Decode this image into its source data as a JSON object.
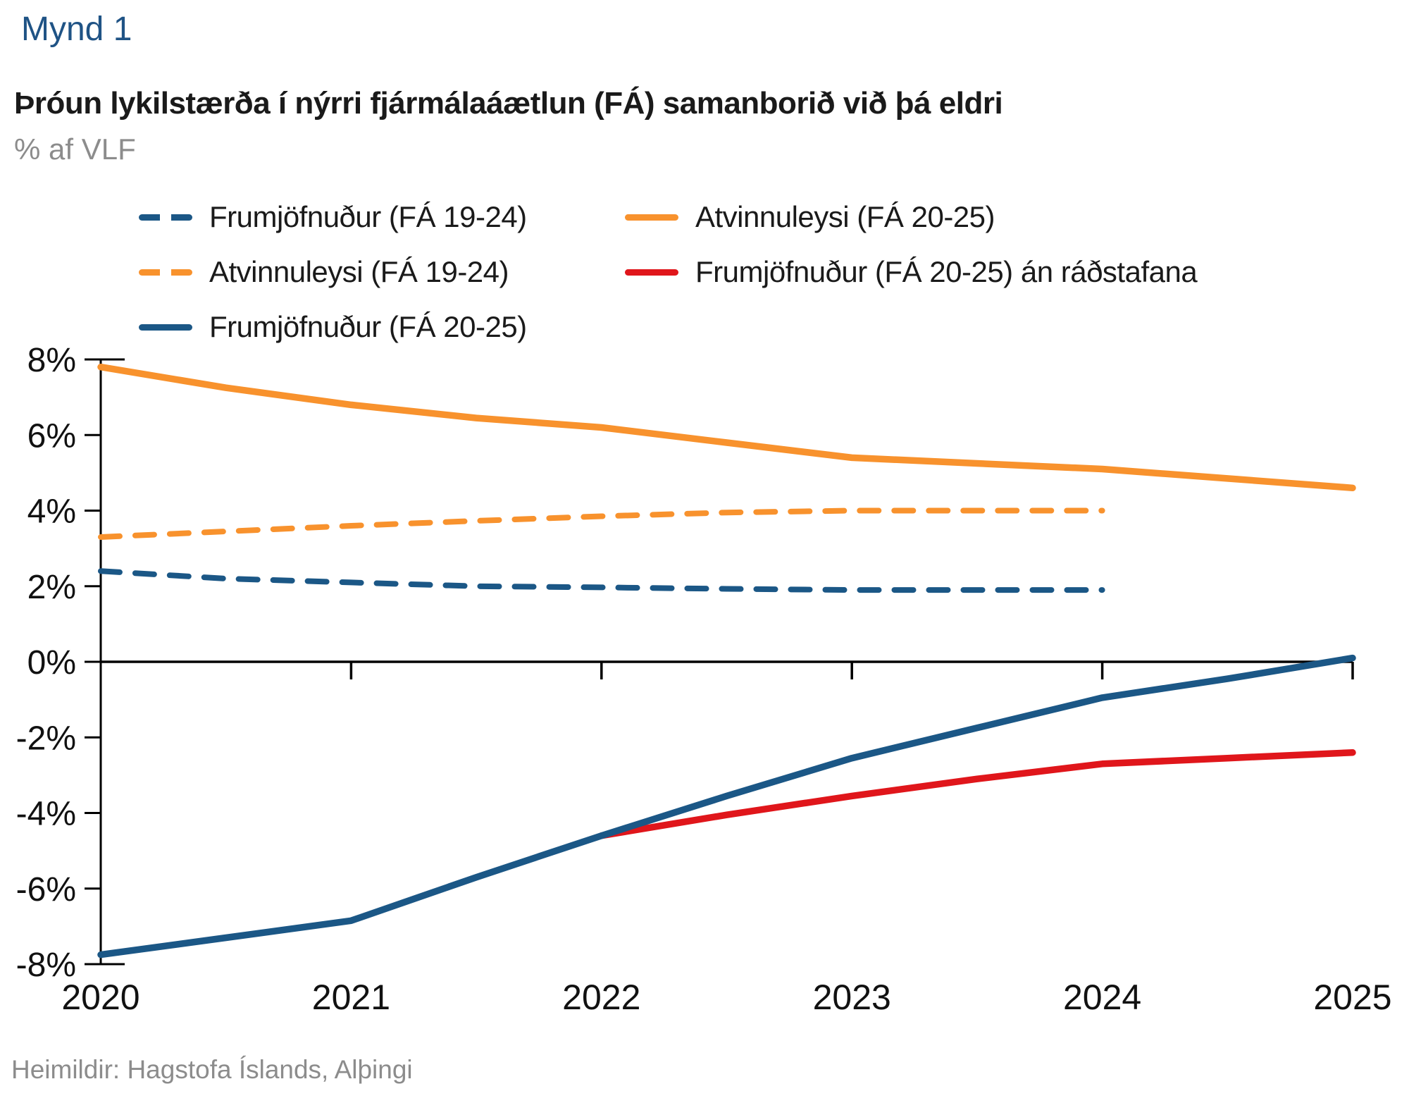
{
  "header": {
    "figure_label": "Mynd 1",
    "title": "Þróun lykilstærða í nýrri fjármálaáætlun (FÁ) samanborið við þá eldri",
    "unit_label": "% af VLF"
  },
  "colors": {
    "title_blue": "#1F5385",
    "near_black": "#1A1A1A",
    "gray_text": "#8C8C8C",
    "axis_black": "#000000",
    "blue": "#1B5786",
    "orange": "#F8922D",
    "red": "#E0161B"
  },
  "legend": {
    "items": [
      {
        "label": "Frumjöfnuður (FÁ 19-24)",
        "color": "#1B5786",
        "dash": true
      },
      {
        "label": "Atvinnuleysi (FÁ 20-25)",
        "color": "#F8922D",
        "dash": false
      },
      {
        "label": "Atvinnuleysi (FÁ 19-24)",
        "color": "#F8922D",
        "dash": true
      },
      {
        "label": "Frumjöfnuður (FÁ 20-25) án ráðstafana",
        "color": "#E0161B",
        "dash": false
      },
      {
        "label": "Frumjöfnuður (FÁ 20-25)",
        "color": "#1B5786",
        "dash": false
      }
    ]
  },
  "chart_data": {
    "type": "line",
    "title": "Þróun lykilstærða í nýrri fjármálaáætlun (FÁ) samanborið við þá eldri",
    "subtitle": "% af VLF",
    "xlim": [
      2020,
      2025
    ],
    "ylim": [
      -8,
      8
    ],
    "x_ticks": [
      2020,
      2021,
      2022,
      2023,
      2024,
      2025
    ],
    "y_ticks": [
      8,
      6,
      4,
      2,
      0,
      -2,
      -4,
      -6,
      -8
    ],
    "y_tick_suffix": "%",
    "grid": false,
    "legend_position": "top-left",
    "series": [
      {
        "id": "frumjofnudur-fa-19-24",
        "name": "Frumjöfnuður (FÁ 19-24)",
        "color": "#1B5786",
        "dash": true,
        "points": [
          [
            2020,
            2.4
          ],
          [
            2020.5,
            2.2
          ],
          [
            2021,
            2.1
          ],
          [
            2021.5,
            2.0
          ],
          [
            2022,
            1.97
          ],
          [
            2022.5,
            1.93
          ],
          [
            2023,
            1.9
          ],
          [
            2023.5,
            1.9
          ],
          [
            2024,
            1.9
          ]
        ]
      },
      {
        "id": "atvinnuleysi-fa-20-25",
        "name": "Atvinnuleysi (FÁ 20-25)",
        "color": "#F8922D",
        "dash": false,
        "points": [
          [
            2020,
            7.8
          ],
          [
            2020.5,
            7.25
          ],
          [
            2021,
            6.8
          ],
          [
            2021.5,
            6.45
          ],
          [
            2022,
            6.2
          ],
          [
            2022.5,
            5.8
          ],
          [
            2023,
            5.4
          ],
          [
            2023.5,
            5.25
          ],
          [
            2024,
            5.1
          ],
          [
            2024.5,
            4.85
          ],
          [
            2025,
            4.6
          ]
        ]
      },
      {
        "id": "atvinnuleysi-fa-19-24",
        "name": "Atvinnuleysi (FÁ 19-24)",
        "color": "#F8922D",
        "dash": true,
        "points": [
          [
            2020,
            3.3
          ],
          [
            2020.5,
            3.45
          ],
          [
            2021,
            3.6
          ],
          [
            2021.5,
            3.73
          ],
          [
            2022,
            3.85
          ],
          [
            2022.5,
            3.95
          ],
          [
            2023,
            4.0
          ],
          [
            2023.5,
            4.0
          ],
          [
            2024,
            4.0
          ]
        ]
      },
      {
        "id": "frumjofnudur-fa-20-25-an-radstafana",
        "name": "Frumjöfnuður (FÁ 20-25) án ráðstafana",
        "color": "#E0161B",
        "dash": false,
        "points": [
          [
            2022,
            -4.6
          ],
          [
            2022.5,
            -4.05
          ],
          [
            2023,
            -3.55
          ],
          [
            2023.5,
            -3.1
          ],
          [
            2024,
            -2.7
          ],
          [
            2024.5,
            -2.55
          ],
          [
            2025,
            -2.4
          ]
        ]
      },
      {
        "id": "frumjofnudur-fa-20-25",
        "name": "Frumjöfnuður (FÁ 20-25)",
        "color": "#1B5786",
        "dash": false,
        "points": [
          [
            2020,
            -7.75
          ],
          [
            2020.5,
            -7.3
          ],
          [
            2021,
            -6.85
          ],
          [
            2021.5,
            -5.7
          ],
          [
            2022,
            -4.6
          ],
          [
            2022.5,
            -3.55
          ],
          [
            2023,
            -2.55
          ],
          [
            2023.5,
            -1.75
          ],
          [
            2024,
            -0.95
          ],
          [
            2024.5,
            -0.45
          ],
          [
            2025,
            0.1
          ]
        ]
      }
    ]
  },
  "footer": {
    "source": "Heimildir: Hagstofa Íslands, Alþingi"
  }
}
